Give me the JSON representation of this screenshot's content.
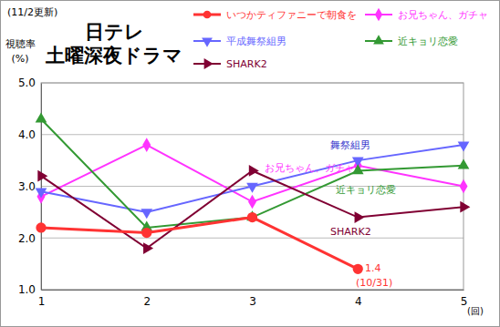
{
  "chart_data": {
    "type": "line",
    "title": "日テレ\n土曜深夜ドラマ",
    "subtitle": "(11/2更新)",
    "y_label": "視聴率\n(%)",
    "x_label": "(回)",
    "x": [
      1,
      2,
      3,
      4,
      5
    ],
    "xlim": [
      1,
      5
    ],
    "xticks": [
      1,
      2,
      3,
      4,
      5
    ],
    "ylim": [
      1,
      5
    ],
    "yticks": [
      {
        "value": 1,
        "label": "1.0"
      },
      {
        "value": 2,
        "label": "2.0"
      },
      {
        "value": 3,
        "label": "3.0"
      },
      {
        "value": 4,
        "label": "4.0"
      },
      {
        "value": 5,
        "label": "5.0"
      }
    ],
    "grid": true,
    "legend": "top",
    "series": [
      {
        "name": "いつかティファニーで朝食を",
        "color": "#ff3333",
        "marker": "circle",
        "values": [
          2.2,
          2.1,
          2.4,
          1.4,
          null
        ]
      },
      {
        "name": "お兄ちゃん、ガチャ",
        "color": "#ff33ff",
        "marker": "diamond",
        "values": [
          2.8,
          3.8,
          2.7,
          3.4,
          3.0
        ]
      },
      {
        "name": "平成舞祭組男",
        "color": "#6666ff",
        "marker": "triangle-down",
        "values": [
          2.9,
          2.5,
          3.0,
          3.5,
          3.8
        ]
      },
      {
        "name": "近キョリ恋愛",
        "color": "#339933",
        "marker": "triangle-up",
        "values": [
          4.3,
          2.2,
          2.4,
          3.3,
          3.4
        ]
      },
      {
        "name": "SHARK2",
        "color": "#800033",
        "marker": "triangle-right",
        "values": [
          3.2,
          1.8,
          3.3,
          2.4,
          2.6
        ]
      }
    ],
    "annotations": [
      {
        "text": "舞祭組男",
        "color": "#3333cc"
      },
      {
        "text": "お兄ちゃん、ガチャ",
        "color": "#ff33ff"
      },
      {
        "text": "近キョリ恋愛",
        "color": "#339933"
      },
      {
        "text": "SHARK2",
        "color": "#800033"
      },
      {
        "text": "1.4",
        "color": "#ff3333"
      },
      {
        "text": "(10/31)",
        "color": "#ff3333"
      }
    ]
  }
}
